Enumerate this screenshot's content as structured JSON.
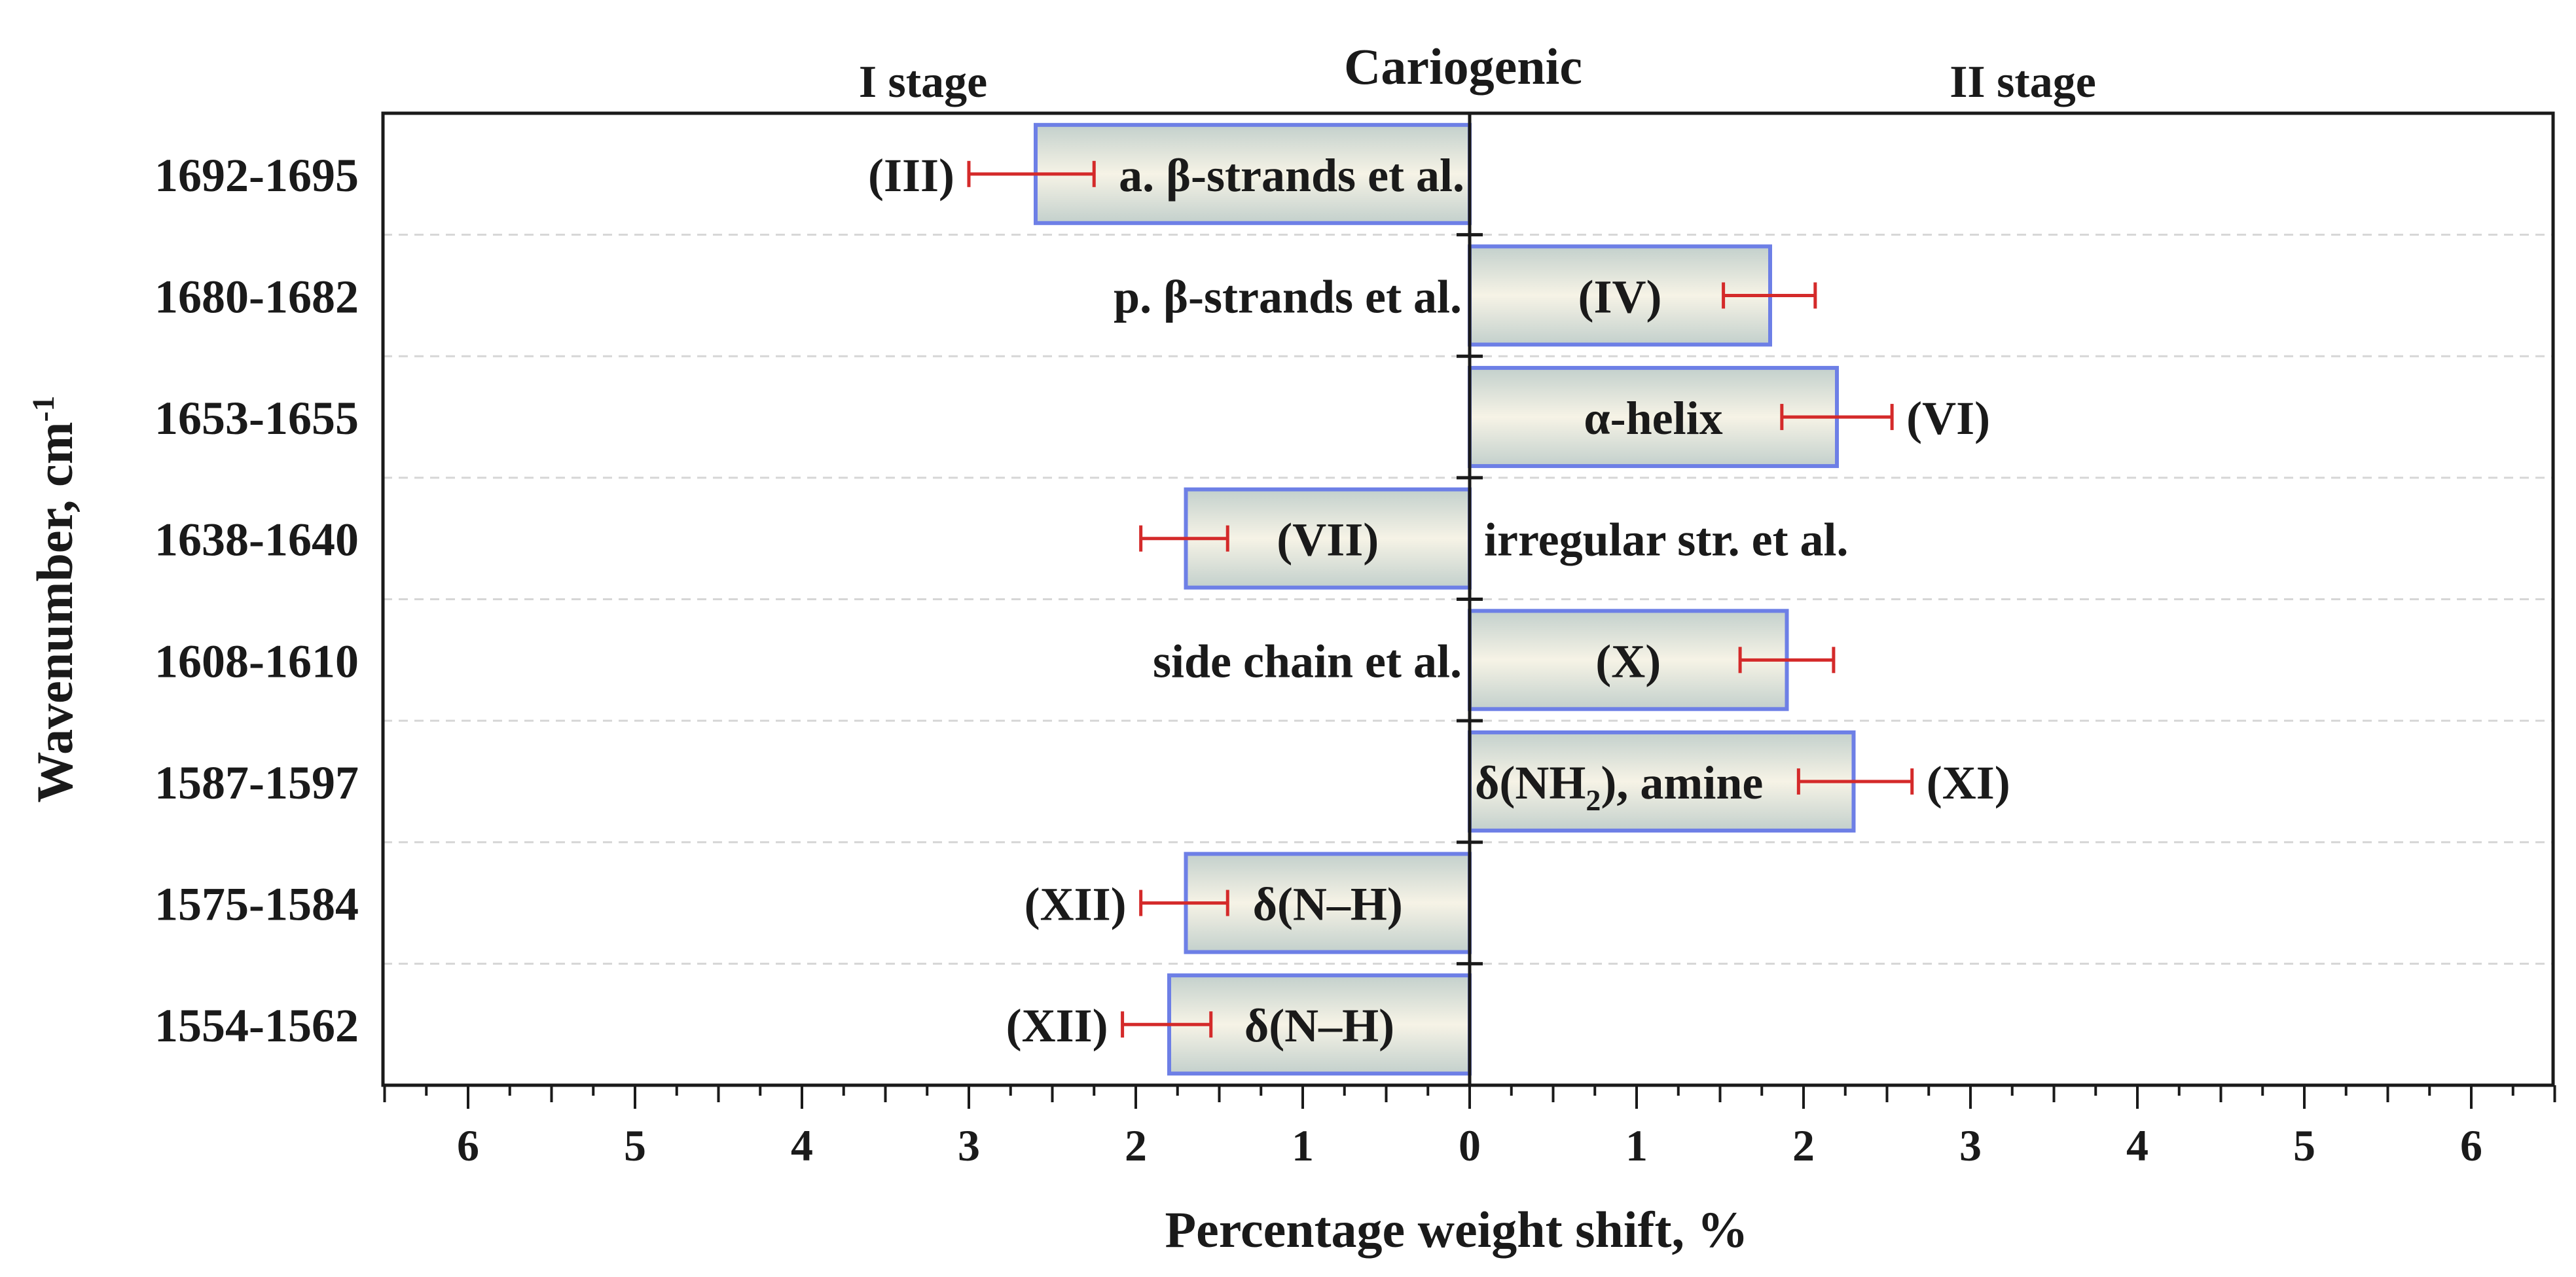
{
  "chart_data": {
    "type": "bar",
    "orientation": "horizontal-diverging",
    "xlabel": "Percentage weight shift, %",
    "ylabel": "Wavenumber, cm",
    "ylabel_sup": "-1",
    "header_left": "I stage",
    "header_center": "Cariogenic",
    "header_right": "II stage",
    "xlim": [
      -6.5,
      6.5
    ],
    "x_ticks": [
      -6,
      -5,
      -4,
      -3,
      -2,
      -1,
      0,
      1,
      2,
      3,
      4,
      5,
      6
    ],
    "x_tick_labels": [
      "6",
      "5",
      "4",
      "3",
      "2",
      "1",
      "0",
      "1",
      "2",
      "3",
      "4",
      "5",
      "6"
    ],
    "rows": [
      {
        "category": "1692-1695",
        "value": -2.6,
        "err_low": -3.0,
        "err_high": -2.25,
        "bar_text": "a. β-strands et al.",
        "bar_text_pos": "in-bar",
        "label": "(III)",
        "label_pos": "left-of-err",
        "side_text": ""
      },
      {
        "category": "1680-1682",
        "value": 1.8,
        "err_low": 1.52,
        "err_high": 2.07,
        "bar_text": "(IV)",
        "bar_text_pos": "in-bar",
        "label": "",
        "label_pos": "",
        "side_text": "p. β-strands et al."
      },
      {
        "category": "1653-1655",
        "value": 2.2,
        "err_low": 1.87,
        "err_high": 2.53,
        "bar_text": "α-helix",
        "bar_text_pos": "in-bar",
        "label": "(VI)",
        "label_pos": "right-of-err",
        "side_text": ""
      },
      {
        "category": "1638-1640",
        "value": -1.7,
        "err_low": -1.97,
        "err_high": -1.45,
        "bar_text": "(VII)",
        "bar_text_pos": "in-bar",
        "label": "",
        "label_pos": "",
        "side_text": "irregular str. et al."
      },
      {
        "category": "1608-1610",
        "value": 1.9,
        "err_low": 1.62,
        "err_high": 2.18,
        "bar_text": "(X)",
        "bar_text_pos": "in-bar",
        "label": "",
        "label_pos": "",
        "side_text": "side chain et al."
      },
      {
        "category": "1587-1597",
        "value": 2.3,
        "err_low": 1.97,
        "err_high": 2.65,
        "bar_text": "δ(NH",
        "bar_text_sub": "2",
        "bar_text_tail": "), amine",
        "bar_text_pos": "bar-start",
        "label": "(XI)",
        "label_pos": "right-of-err",
        "side_text": ""
      },
      {
        "category": "1575-1584",
        "value": -1.7,
        "err_low": -1.97,
        "err_high": -1.45,
        "bar_text": "δ(N–H)",
        "bar_text_pos": "in-bar",
        "label": "(XII)",
        "label_pos": "left-of-err",
        "side_text": ""
      },
      {
        "category": "1554-1562",
        "value": -1.8,
        "err_low": -2.08,
        "err_high": -1.55,
        "bar_text": "δ(N–H)",
        "bar_text_pos": "in-bar",
        "label": "(XII)",
        "label_pos": "left-of-err",
        "side_text": ""
      }
    ]
  },
  "colors": {
    "bar_edge": "#6d7fe6",
    "bar_fill_center": "#f6f3e6",
    "bar_fill_edge": "#c3d0cc",
    "error_bar": "#d42a2a",
    "axis": "#1a1a1a",
    "grid": "#d6d6d6"
  }
}
